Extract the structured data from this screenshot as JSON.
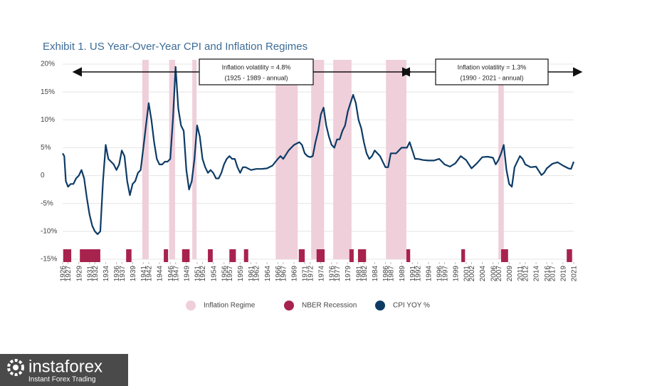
{
  "chart_data": {
    "type": "line",
    "title": "Exhibit 1. US  Year-Over-Year CPI and Inflation Regimes",
    "xlim": [
      1926,
      2021
    ],
    "xticks": [
      1926,
      1927,
      1929,
      1931,
      1932,
      1934,
      1936,
      1937,
      1939,
      1941,
      1942,
      1944,
      1946,
      1947,
      1949,
      1951,
      1952,
      1954,
      1956,
      1957,
      1959,
      1961,
      1962,
      1964,
      1966,
      1967,
      1969,
      1971,
      1972,
      1974,
      1976,
      1977,
      1979,
      1981,
      1982,
      1984,
      1986,
      1987,
      1989,
      1991,
      1992,
      1994,
      1996,
      1997,
      1999,
      2001,
      2002,
      2004,
      2006,
      2007,
      2009,
      2011,
      2012,
      2014,
      2016,
      2017,
      2019,
      2021
    ],
    "ylim": [
      -15,
      20
    ],
    "yticks": [
      {
        "value": 20,
        "label": "20%"
      },
      {
        "value": 15,
        "label": "15%"
      },
      {
        "value": 10,
        "label": "10%"
      },
      {
        "value": 5,
        "label": "5%"
      },
      0,
      {
        "value": -5,
        "label": "-5%"
      },
      {
        "value": -10,
        "label": "-10%"
      },
      {
        "value": -15,
        "label": "-15%"
      }
    ],
    "grid": true,
    "regimes": {
      "name": "Inflation Regime",
      "color": "#efcfda",
      "spans": [
        [
          1940.8,
          1942.0
        ],
        [
          1945.8,
          1946.9
        ],
        [
          1950.1,
          1950.9
        ],
        [
          1965.6,
          1969.7
        ],
        [
          1972.2,
          1974.6
        ],
        [
          1976.3,
          1979.7
        ],
        [
          1986.1,
          1989.9
        ],
        [
          2007.0,
          2008.0
        ]
      ]
    },
    "recessions": {
      "name": "NBER Recession",
      "color": "#a8224e",
      "spans": [
        [
          1926.1,
          1927.6
        ],
        [
          1929.2,
          1933.0
        ],
        [
          1937.8,
          1938.8
        ],
        [
          1944.8,
          1945.6
        ],
        [
          1948.2,
          1949.6
        ],
        [
          1953.0,
          1953.9
        ],
        [
          1957.0,
          1958.2
        ],
        [
          1959.7,
          1960.5
        ],
        [
          1969.9,
          1971.0
        ],
        [
          1973.2,
          1974.7
        ],
        [
          1979.3,
          1980.1
        ],
        [
          1980.9,
          1982.4
        ],
        [
          1989.9,
          1990.6
        ],
        [
          2000.1,
          2000.8
        ],
        [
          2007.5,
          2008.8
        ],
        [
          2019.7,
          2020.7
        ]
      ]
    },
    "cpi": {
      "name": "CPI YOY %",
      "color": "#0d3b66",
      "x": [
        1926,
        1926.3,
        1926.6,
        1927,
        1927.5,
        1928,
        1928.5,
        1929,
        1929.5,
        1930,
        1930.5,
        1931,
        1931.5,
        1932,
        1932.5,
        1933,
        1933.5,
        1934,
        1934.5,
        1935,
        1935.5,
        1936,
        1936.5,
        1937,
        1937.5,
        1938,
        1938.5,
        1939,
        1939.5,
        1940,
        1940.5,
        1941,
        1941.5,
        1942,
        1942.5,
        1943,
        1943.5,
        1944,
        1944.5,
        1945,
        1945.5,
        1946,
        1946.5,
        1947,
        1947.5,
        1948,
        1948.5,
        1949,
        1949.5,
        1950,
        1950.5,
        1951,
        1951.5,
        1952,
        1952.5,
        1953,
        1953.5,
        1954,
        1954.5,
        1955,
        1955.5,
        1956,
        1956.5,
        1957,
        1957.5,
        1958,
        1958.5,
        1959,
        1959.5,
        1960,
        1961,
        1962,
        1963,
        1964,
        1965,
        1966,
        1966.5,
        1967,
        1968,
        1969,
        1970,
        1970.5,
        1971,
        1971.5,
        1972,
        1972.5,
        1973,
        1973.5,
        1974,
        1974.5,
        1975,
        1975.5,
        1976,
        1976.5,
        1977,
        1977.5,
        1978,
        1978.5,
        1979,
        1979.5,
        1980,
        1980.5,
        1981,
        1981.5,
        1982,
        1982.5,
        1983,
        1983.5,
        1984,
        1985,
        1986,
        1986.5,
        1987,
        1988,
        1989,
        1990,
        1990.5,
        1991,
        1991.5,
        1992,
        1993,
        1994,
        1995,
        1996,
        1997,
        1998,
        1999,
        2000,
        2001,
        2002,
        2003,
        2004,
        2005,
        2006,
        2006.5,
        2007,
        2007.5,
        2008,
        2008.5,
        2009,
        2009.5,
        2010,
        2011,
        2011.5,
        2012,
        2013,
        2014,
        2015,
        2015.5,
        2016,
        2017,
        2018,
        2019,
        2020,
        2020.5,
        2021
      ],
      "values": [
        4,
        3.5,
        -1,
        -2,
        -1.5,
        -1.5,
        -0.5,
        0,
        1,
        -0.5,
        -4,
        -7,
        -9,
        -10,
        -10.5,
        -10,
        -1,
        5.5,
        3,
        2.5,
        2,
        1,
        2,
        4.5,
        3.5,
        -1,
        -3.5,
        -1.5,
        -1,
        0.5,
        1,
        5,
        9,
        13,
        10,
        6,
        3,
        2,
        2,
        2.5,
        2.5,
        3,
        10,
        19.5,
        12,
        9,
        8,
        1,
        -2.5,
        -1,
        3,
        9,
        7,
        3,
        1.5,
        0.5,
        1,
        0.5,
        -0.5,
        -0.5,
        0.5,
        2,
        3,
        3.5,
        3,
        3,
        1.5,
        0.5,
        1.5,
        1.5,
        1,
        1.2,
        1.2,
        1.3,
        1.8,
        3,
        3.5,
        3,
        4.5,
        5.5,
        6,
        5.5,
        4,
        3.5,
        3.3,
        3.5,
        6,
        8,
        11,
        12.2,
        9,
        7,
        5.5,
        5,
        6.5,
        6.5,
        8,
        9,
        11.5,
        13,
        14.5,
        13,
        10,
        8.5,
        6,
        4,
        3,
        3.5,
        4.5,
        3.5,
        1.5,
        1.5,
        4,
        4,
        5,
        5,
        6,
        4.5,
        3,
        3,
        2.8,
        2.7,
        2.7,
        3,
        2,
        1.6,
        2.2,
        3.5,
        2.8,
        1.3,
        2.2,
        3.3,
        3.4,
        3.2,
        2,
        2.8,
        4,
        5.5,
        1,
        -1.5,
        -2,
        1.5,
        3.5,
        3,
        2,
        1.5,
        1.6,
        0.1,
        0.5,
        1.3,
        2.1,
        2.4,
        1.8,
        1.3,
        1.2,
        2.5
      ]
    },
    "annotations": [
      {
        "lines": [
          "Inflation volatility = 4.8%",
          "(1925 - 1989 - annual)"
        ]
      },
      {
        "lines": [
          "Inflation volatility = 1.3%",
          "(1990 - 2021 - annual)"
        ]
      }
    ]
  },
  "watermark": {
    "brand": "instaforex",
    "tagline": "Instant Forex Trading"
  }
}
